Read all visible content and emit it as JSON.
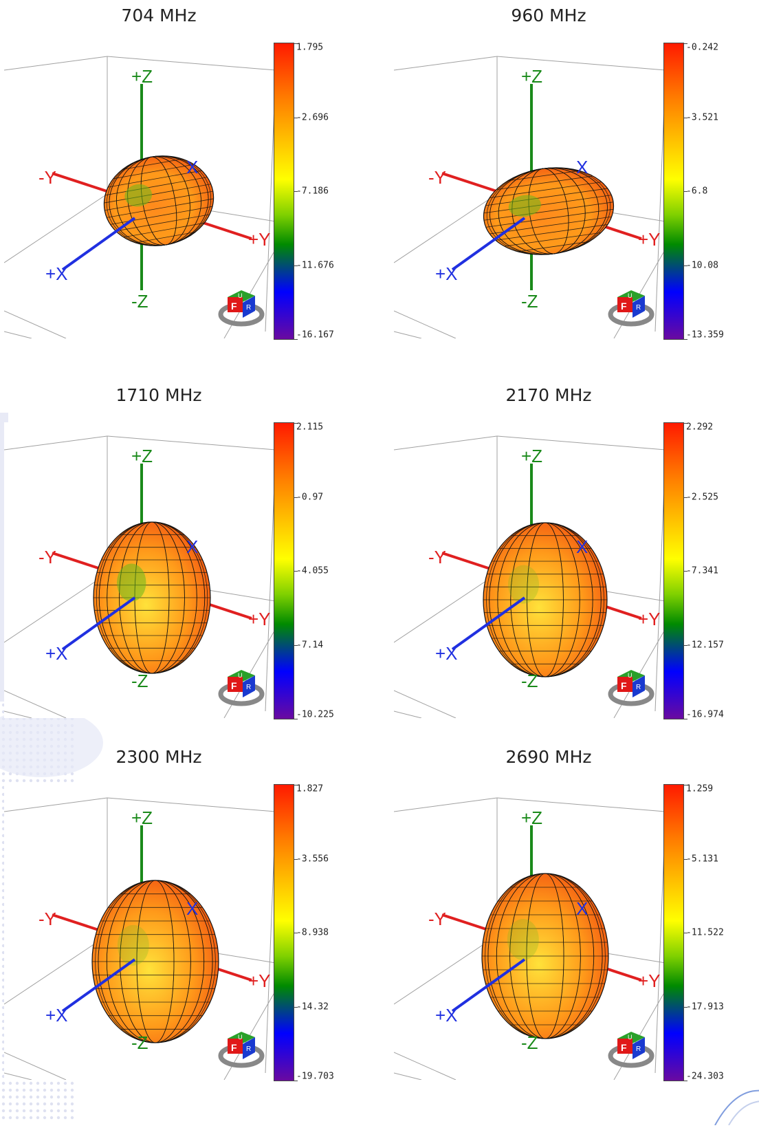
{
  "axes": {
    "pz": "+Z",
    "nz": "-Z",
    "ny": "-Y",
    "py": "+Y",
    "px": "+X",
    "x": "X"
  },
  "cube": {
    "front": "F",
    "right": "R",
    "top": "U"
  },
  "colors": {
    "axis_z": "#1a8a1a",
    "axis_y": "#e02020",
    "axis_x": "#2030e0",
    "grid": "#a0a0a0"
  },
  "panels": [
    {
      "title": "704 MHz",
      "ticks": [
        "1.795",
        "-2.696",
        "-7.186",
        "-11.676",
        "-16.167"
      ]
    },
    {
      "title": "960 MHz",
      "ticks": [
        "-0.242",
        "-3.521",
        "-6.8",
        "-10.08",
        "-13.359"
      ]
    },
    {
      "title": "1710 MHz",
      "ticks": [
        "2.115",
        "-0.97",
        "-4.055",
        "-7.14",
        "-10.225"
      ]
    },
    {
      "title": "2170 MHz",
      "ticks": [
        "2.292",
        "-2.525",
        "-7.341",
        "-12.157",
        "-16.974"
      ]
    },
    {
      "title": "2300 MHz",
      "ticks": [
        "1.827",
        "-3.556",
        "-8.938",
        "-14.32",
        "-19.703"
      ]
    },
    {
      "title": "2690 MHz",
      "ticks": [
        "1.259",
        "-5.131",
        "-11.522",
        "-17.913",
        "-24.303"
      ]
    }
  ]
}
